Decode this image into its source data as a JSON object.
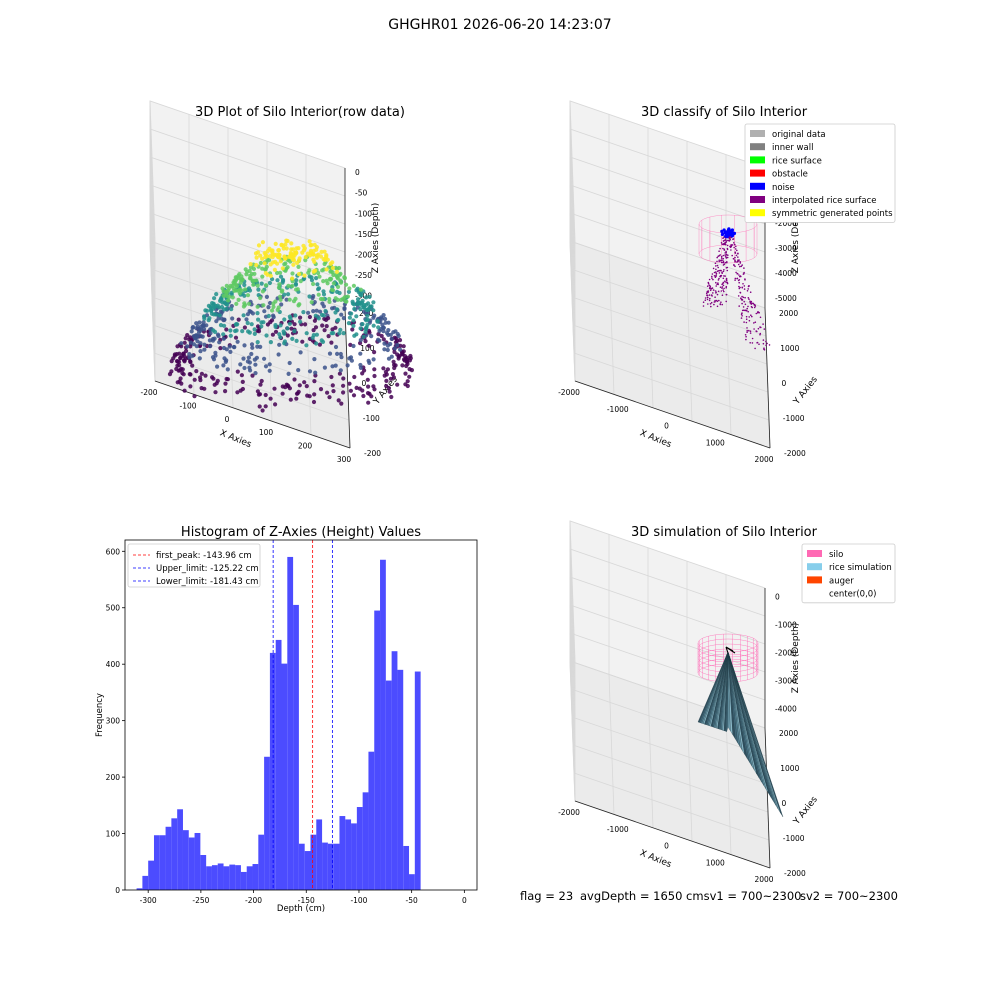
{
  "figure": {
    "title": "GHGHR01 2026-06-20 14:23:07",
    "status": {
      "flag": "flag = 23",
      "avg_depth": "avgDepth = 1650 cmsv1 = 700~2300",
      "sv2": "sv2 = 700~2300"
    }
  },
  "chart_data": [
    {
      "type": "scatter",
      "projection": "3d",
      "title": "3D Plot of Silo Interior(row data)",
      "xlabel": "X Axies",
      "ylabel": "Y Axies",
      "zlabel": "Z Axies (Depth)",
      "x_ticks": [
        -200,
        -100,
        0,
        100,
        200,
        300
      ],
      "y_ticks": [
        -200,
        -100,
        0,
        100,
        200
      ],
      "z_ticks": [
        0,
        -50,
        -100,
        -150,
        -200,
        -250,
        -300
      ],
      "xlim": [
        -250,
        330
      ],
      "ylim": [
        -230,
        230
      ],
      "zlim": [
        -330,
        10
      ],
      "colormap": "viridis",
      "colors": [
        "#440154",
        "#3b528b",
        "#21918c",
        "#5ec962",
        "#fde725"
      ],
      "shape": "dome of points: depth ~ -300 at radius ~200 rising to ~ -20 at the centre"
    },
    {
      "type": "scatter",
      "projection": "3d",
      "title": "3D classify of Silo Interior",
      "xlabel": "X Axies",
      "ylabel": "Y Axies",
      "zlabel": "Z Axies (Depth)",
      "x_ticks": [
        -2000,
        -1000,
        0,
        1000,
        2000
      ],
      "y_ticks": [
        -2000,
        -1000,
        0,
        1000,
        2000
      ],
      "z_ticks": [
        0,
        -1000,
        -2000,
        -3000,
        -4000,
        -5000
      ],
      "legend": [
        {
          "label": "original data",
          "color": "#b0b0b0"
        },
        {
          "label": "inner wall",
          "color": "#808080"
        },
        {
          "label": "rice surface",
          "color": "#00ff00"
        },
        {
          "label": "obstacle",
          "color": "#ff0000"
        },
        {
          "label": "noise",
          "color": "#0000ff"
        },
        {
          "label": "interpolated rice surface",
          "color": "#800080"
        },
        {
          "label": "symmetric generated points",
          "color": "#ffff00"
        }
      ],
      "legend_loc": "upper right"
    },
    {
      "type": "bar",
      "title": "Histogram of Z-Axies (Height) Values",
      "xlabel": "Depth (cm)",
      "ylabel": "Frequency",
      "bar_color": "#4c4cff",
      "x_ticks": [
        -300,
        -250,
        -200,
        -150,
        -100,
        -50,
        0
      ],
      "y_ticks": [
        0,
        100,
        200,
        300,
        400,
        500,
        600
      ],
      "xlim": [
        -322,
        12
      ],
      "ylim": [
        0,
        620
      ],
      "bin_width": 5.5,
      "bin_start": -311.0,
      "counts": [
        3,
        25,
        52,
        97,
        97,
        112,
        127,
        143,
        106,
        93,
        101,
        62,
        42,
        44,
        47,
        42,
        45,
        44,
        32,
        42,
        46,
        98,
        236,
        420,
        443,
        401,
        590,
        505,
        82,
        69,
        98,
        125,
        84,
        82,
        82,
        131,
        125,
        118,
        147,
        173,
        245,
        495,
        585,
        371,
        423,
        390,
        78,
        28,
        387
      ],
      "vlines": [
        {
          "label": "first_peak: -143.96 cm",
          "x": -143.96,
          "color": "#ff0000"
        },
        {
          "label": "Upper_limit: -125.22 cm",
          "x": -125.22,
          "color": "#0000ff"
        },
        {
          "label": "Lower_limit: -181.43 cm",
          "x": -181.43,
          "color": "#0000ff"
        }
      ],
      "legend_loc": "upper left"
    },
    {
      "type": "area",
      "projection": "3d",
      "title": "3D simulation of Silo Interior",
      "xlabel": "X Axies",
      "ylabel": "Y Axies",
      "zlabel": "Z Axies (Depth)",
      "x_ticks": [
        -2000,
        -1000,
        0,
        1000,
        2000
      ],
      "y_ticks": [
        -2000,
        -1000,
        0,
        1000,
        2000
      ],
      "z_ticks": [
        0,
        -1000,
        -2000,
        -3000,
        -4000
      ],
      "legend": [
        {
          "label": "silo",
          "color": "#ff69b4"
        },
        {
          "label": "rice simulation",
          "color": "#87ceeb"
        },
        {
          "label": "auger",
          "color": "#ff4500"
        },
        {
          "label": "center(0,0)",
          "color": ""
        }
      ],
      "legend_loc": "upper right"
    }
  ]
}
